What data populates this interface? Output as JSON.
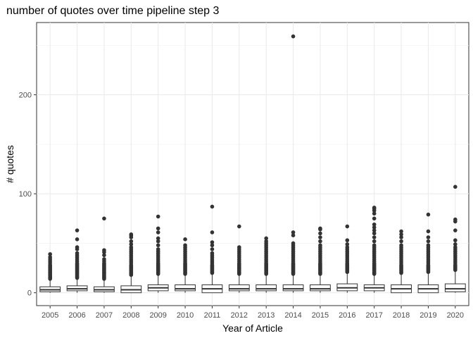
{
  "chart_data": {
    "type": "box",
    "title": "number of quotes over time pipeline step 3",
    "xlabel": "Year of Article",
    "ylabel": "# quotes",
    "ylim": [
      -13,
      273
    ],
    "yticks": [
      0,
      100,
      200
    ],
    "grid": true,
    "legend": "none",
    "categories": [
      "2005",
      "2006",
      "2007",
      "2008",
      "2009",
      "2010",
      "2011",
      "2012",
      "2013",
      "2014",
      "2015",
      "2016",
      "2017",
      "2018",
      "2019",
      "2020"
    ],
    "boxes": [
      {
        "category": "2005",
        "q1": 1,
        "median": 3,
        "q3": 6,
        "whisker_low": 0,
        "whisker_high": 13,
        "outliers": [
          14,
          15,
          16,
          17,
          18,
          19,
          20,
          21,
          22,
          23,
          24,
          25,
          26,
          27,
          28,
          30,
          32,
          34,
          36,
          39
        ]
      },
      {
        "category": "2006",
        "q1": 2,
        "median": 4,
        "q3": 7,
        "whisker_low": 0,
        "whisker_high": 14,
        "outliers": [
          15,
          16,
          17,
          18,
          19,
          20,
          21,
          22,
          23,
          24,
          25,
          26,
          27,
          28,
          29,
          30,
          32,
          34,
          36,
          38,
          40,
          44,
          46,
          54,
          63
        ]
      },
      {
        "category": "2007",
        "q1": 1,
        "median": 3,
        "q3": 6,
        "whisker_low": 0,
        "whisker_high": 13,
        "outliers": [
          14,
          15,
          16,
          17,
          18,
          19,
          20,
          21,
          22,
          23,
          24,
          25,
          26,
          27,
          28,
          29,
          30,
          32,
          34,
          38,
          41,
          43,
          75
        ]
      },
      {
        "category": "2008",
        "q1": 0,
        "median": 3,
        "q3": 7,
        "whisker_low": 0,
        "whisker_high": 17,
        "outliers": [
          18,
          19,
          20,
          21,
          22,
          23,
          24,
          25,
          26,
          27,
          28,
          30,
          32,
          34,
          36,
          38,
          40,
          42,
          44,
          46,
          49,
          52,
          56,
          58,
          59
        ]
      },
      {
        "category": "2009",
        "q1": 2,
        "median": 5,
        "q3": 8,
        "whisker_low": 0,
        "whisker_high": 18,
        "outliers": [
          19,
          20,
          21,
          22,
          23,
          24,
          25,
          26,
          27,
          28,
          29,
          30,
          32,
          34,
          36,
          38,
          40,
          42,
          44,
          48,
          52,
          55,
          61,
          65,
          77
        ]
      },
      {
        "category": "2010",
        "q1": 2,
        "median": 4,
        "q3": 8,
        "whisker_low": 0,
        "whisker_high": 18,
        "outliers": [
          19,
          20,
          21,
          22,
          23,
          24,
          25,
          26,
          27,
          28,
          29,
          30,
          32,
          34,
          36,
          38,
          40,
          42,
          44,
          46,
          48,
          54
        ]
      },
      {
        "category": "2011",
        "q1": 0,
        "median": 4,
        "q3": 8,
        "whisker_low": 0,
        "whisker_high": 19,
        "outliers": [
          20,
          21,
          22,
          23,
          24,
          25,
          26,
          27,
          28,
          30,
          32,
          34,
          36,
          38,
          40,
          44,
          48,
          51,
          61,
          87
        ]
      },
      {
        "category": "2012",
        "q1": 2,
        "median": 4,
        "q3": 8,
        "whisker_low": 0,
        "whisker_high": 18,
        "outliers": [
          19,
          20,
          21,
          22,
          23,
          24,
          25,
          26,
          27,
          28,
          29,
          30,
          32,
          34,
          36,
          38,
          40,
          42,
          44,
          46,
          67
        ]
      },
      {
        "category": "2013",
        "q1": 2,
        "median": 4,
        "q3": 8,
        "whisker_low": 0,
        "whisker_high": 18,
        "outliers": [
          19,
          20,
          21,
          22,
          23,
          24,
          25,
          26,
          27,
          28,
          29,
          30,
          32,
          34,
          36,
          38,
          40,
          42,
          44,
          46,
          48,
          50,
          52,
          55
        ]
      },
      {
        "category": "2014",
        "q1": 2,
        "median": 4,
        "q3": 8,
        "whisker_low": 0,
        "whisker_high": 18,
        "outliers": [
          19,
          20,
          21,
          22,
          23,
          24,
          25,
          26,
          27,
          28,
          29,
          30,
          32,
          34,
          36,
          38,
          40,
          42,
          44,
          46,
          48,
          50,
          58,
          61,
          259
        ]
      },
      {
        "category": "2015",
        "q1": 2,
        "median": 4,
        "q3": 8,
        "whisker_low": 0,
        "whisker_high": 18,
        "outliers": [
          19,
          20,
          21,
          22,
          23,
          24,
          25,
          26,
          27,
          28,
          29,
          30,
          32,
          34,
          36,
          38,
          40,
          42,
          44,
          46,
          48,
          52,
          56,
          60,
          64,
          65
        ]
      },
      {
        "category": "2016",
        "q1": 2,
        "median": 5,
        "q3": 9,
        "whisker_low": 0,
        "whisker_high": 20,
        "outliers": [
          21,
          22,
          23,
          24,
          25,
          26,
          27,
          28,
          29,
          30,
          32,
          34,
          36,
          38,
          40,
          42,
          44,
          46,
          49,
          53,
          67
        ]
      },
      {
        "category": "2017",
        "q1": 2,
        "median": 5,
        "q3": 8,
        "whisker_low": 0,
        "whisker_high": 18,
        "outliers": [
          19,
          20,
          21,
          22,
          23,
          24,
          25,
          26,
          27,
          28,
          29,
          30,
          32,
          34,
          36,
          38,
          40,
          42,
          44,
          46,
          48,
          52,
          56,
          60,
          63,
          66,
          69,
          75,
          80,
          83,
          85,
          86
        ]
      },
      {
        "category": "2018",
        "q1": 0,
        "median": 4,
        "q3": 8,
        "whisker_low": 0,
        "whisker_high": 19,
        "outliers": [
          20,
          21,
          22,
          23,
          24,
          25,
          26,
          27,
          28,
          30,
          32,
          34,
          36,
          38,
          40,
          42,
          44,
          46,
          48,
          52,
          56,
          59,
          62
        ]
      },
      {
        "category": "2019",
        "q1": 0,
        "median": 4,
        "q3": 8,
        "whisker_low": 0,
        "whisker_high": 20,
        "outliers": [
          21,
          22,
          23,
          24,
          25,
          26,
          27,
          28,
          30,
          32,
          34,
          36,
          38,
          40,
          42,
          44,
          46,
          48,
          52,
          56,
          62,
          79
        ]
      },
      {
        "category": "2020",
        "q1": 1,
        "median": 4,
        "q3": 9,
        "whisker_low": 0,
        "whisker_high": 22,
        "outliers": [
          23,
          24,
          25,
          26,
          27,
          28,
          30,
          32,
          34,
          36,
          38,
          40,
          42,
          44,
          46,
          49,
          53,
          63,
          72,
          74,
          107
        ]
      }
    ]
  }
}
